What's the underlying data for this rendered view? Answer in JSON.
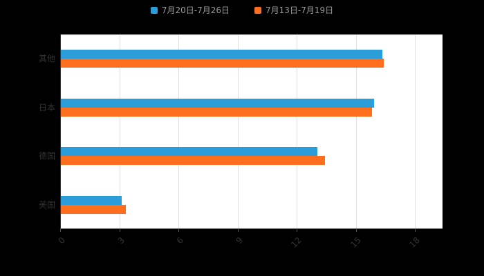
{
  "chart_data": {
    "type": "bar",
    "orientation": "horizontal",
    "title": "",
    "categories": [
      "其他",
      "日本",
      "德国",
      "美国"
    ],
    "series": [
      {
        "name": "7月20日-7月26日",
        "color": "#2b9ed9",
        "values": [
          16.3,
          15.9,
          13.0,
          3.1
        ]
      },
      {
        "name": "7月13日-7月19日",
        "color": "#fd6e1e",
        "values": [
          16.4,
          15.8,
          13.4,
          3.3
        ]
      }
    ],
    "xticks": [
      0,
      3,
      6,
      9,
      12,
      15,
      18
    ],
    "xlim": [
      0,
      18
    ],
    "grid": true,
    "legend_position": "top-center",
    "background": "#000000",
    "plot_background": "#ffffff"
  }
}
